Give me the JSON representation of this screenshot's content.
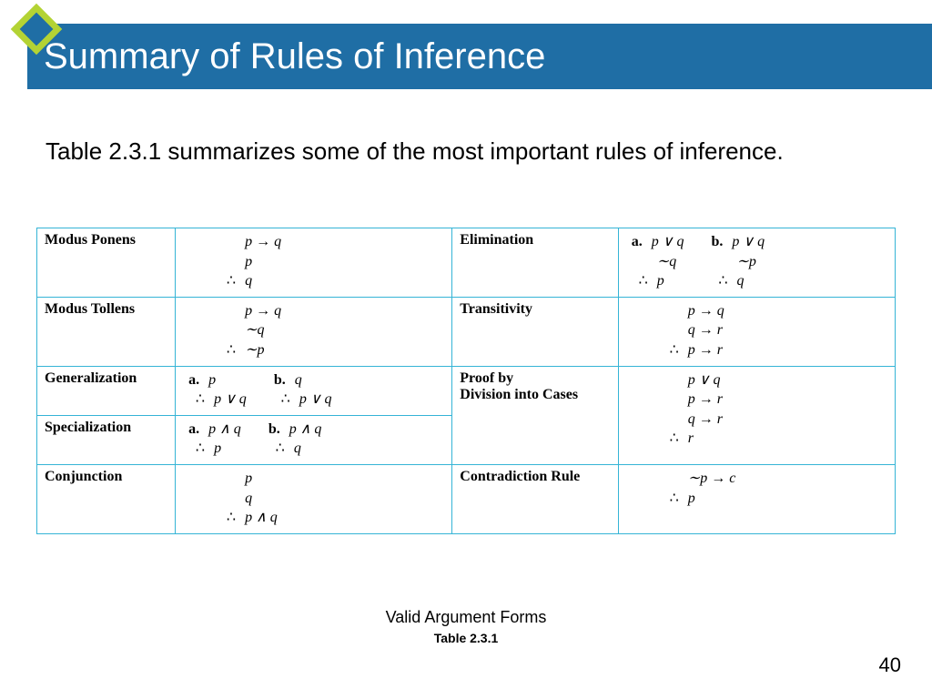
{
  "colors": {
    "title_bar_bg": "#1f6ea5",
    "title_text": "#ffffff",
    "diamond_outer": "#b3d334",
    "diamond_inner": "#1f6ea5",
    "table_border": "#35b4d6",
    "body_text": "#000000",
    "background": "#ffffff"
  },
  "slide": {
    "title": "Summary of Rules of Inference",
    "intro": "Table 2.3.1 summarizes some of the most important rules of inference.",
    "caption_title": "Valid Argument Forms",
    "caption_sub": "Table 2.3.1",
    "page_number": "40"
  },
  "rules": {
    "left": [
      {
        "name": "Modus Ponens",
        "forms": [
          {
            "label": "",
            "premises": [
              "p → q",
              "p"
            ],
            "conclusion": "q"
          }
        ]
      },
      {
        "name": "Modus Tollens",
        "forms": [
          {
            "label": "",
            "premises": [
              "p → q",
              "∼q"
            ],
            "conclusion": "∼p"
          }
        ]
      },
      {
        "name": "Generalization",
        "forms": [
          {
            "label": "a.",
            "premises": [
              "p"
            ],
            "conclusion": "p ∨ q"
          },
          {
            "label": "b.",
            "premises": [
              "q"
            ],
            "conclusion": "p ∨ q"
          }
        ]
      },
      {
        "name": "Specialization",
        "forms": [
          {
            "label": "a.",
            "premises": [
              "p ∧ q"
            ],
            "conclusion": "p"
          },
          {
            "label": "b.",
            "premises": [
              "p ∧ q"
            ],
            "conclusion": "q"
          }
        ]
      },
      {
        "name": "Conjunction",
        "forms": [
          {
            "label": "",
            "premises": [
              "p",
              "q"
            ],
            "conclusion": "p ∧ q"
          }
        ]
      }
    ],
    "right": [
      {
        "name": "Elimination",
        "rowspan": 1,
        "forms": [
          {
            "label": "a.",
            "premises": [
              "p ∨ q",
              "∼q"
            ],
            "conclusion": "p"
          },
          {
            "label": "b.",
            "premises": [
              "p ∨ q",
              "∼p"
            ],
            "conclusion": "q"
          }
        ]
      },
      {
        "name": "Transitivity",
        "rowspan": 1,
        "forms": [
          {
            "label": "",
            "premises": [
              "p → q",
              "q → r"
            ],
            "conclusion": "p → r"
          }
        ]
      },
      {
        "name": "Proof by Division into Cases",
        "rowspan": 2,
        "forms": [
          {
            "label": "",
            "premises": [
              "p ∨ q",
              "p → r",
              "q → r"
            ],
            "conclusion": "r"
          }
        ]
      },
      {
        "name": "Contradiction Rule",
        "rowspan": 1,
        "forms": [
          {
            "label": "",
            "premises": [
              "∼p → c"
            ],
            "conclusion": "p"
          }
        ]
      }
    ]
  }
}
